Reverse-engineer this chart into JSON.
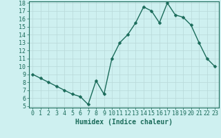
{
  "x": [
    0,
    1,
    2,
    3,
    4,
    5,
    6,
    7,
    8,
    9,
    10,
    11,
    12,
    13,
    14,
    15,
    16,
    17,
    18,
    19,
    20,
    21,
    22,
    23
  ],
  "y": [
    9,
    8.5,
    8,
    7.5,
    7,
    6.5,
    6.2,
    5.2,
    8.2,
    6.5,
    11,
    13,
    14,
    15.5,
    17.5,
    17,
    15.5,
    18,
    16.5,
    16.2,
    15.2,
    13,
    11,
    10
  ],
  "xlabel": "Humidex (Indice chaleur)",
  "ylim": [
    5,
    18
  ],
  "xlim": [
    -0.5,
    23.5
  ],
  "yticks": [
    5,
    6,
    7,
    8,
    9,
    10,
    11,
    12,
    13,
    14,
    15,
    16,
    17,
    18
  ],
  "xticks": [
    0,
    1,
    2,
    3,
    4,
    5,
    6,
    7,
    8,
    9,
    10,
    11,
    12,
    13,
    14,
    15,
    16,
    17,
    18,
    19,
    20,
    21,
    22,
    23
  ],
  "line_color": "#1a6b5a",
  "marker_color": "#1a6b5a",
  "bg_color": "#cef0f0",
  "grid_color": "#b8d8d8",
  "axis_color": "#1a6b5a",
  "label_color": "#1a6b5a",
  "font_size_ticks": 6,
  "font_size_xlabel": 7,
  "line_width": 1.0,
  "marker_size": 2.5
}
